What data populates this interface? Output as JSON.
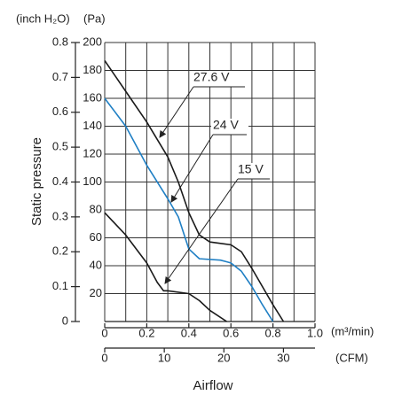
{
  "chart_data": {
    "type": "line",
    "y2_label": "(inch H₂O)",
    "y_label": "(Pa)",
    "y_title": "Static pressure",
    "x_label": "(m³/min)",
    "x2_label": "(CFM)",
    "x_title": "Airflow",
    "xlim": [
      0,
      1
    ],
    "xticks": [
      0,
      0.2,
      0.4,
      0.6,
      0.8,
      {
        "value": 1,
        "label": "1.0"
      }
    ],
    "xgrid": [
      0,
      0.1,
      0.2,
      0.3,
      0.4,
      0.5,
      0.6,
      0.7,
      0.8,
      0.9,
      1
    ],
    "x2lim": [
      0,
      35.3
    ],
    "x2ticks": [
      0,
      10,
      20,
      30
    ],
    "ylim": [
      0,
      200
    ],
    "yticks": [
      20,
      40,
      60,
      80,
      100,
      120,
      140,
      160,
      180,
      200
    ],
    "y2lim": [
      0,
      0.8
    ],
    "y2ticks": [
      0,
      0.1,
      0.2,
      0.3,
      0.4,
      0.5,
      0.6,
      0.7,
      0.8
    ],
    "grid": true,
    "series": [
      {
        "name": "27.6 V",
        "color": "#1a1a1a",
        "x": [
          0,
          0.1,
          0.2,
          0.3,
          0.35,
          0.4,
          0.45,
          0.5,
          0.6,
          0.65,
          0.7,
          0.8,
          0.85
        ],
        "values": [
          187,
          165,
          143,
          118,
          100,
          78,
          62,
          57,
          55,
          50,
          38,
          12,
          0
        ]
      },
      {
        "name": "24 V",
        "color": "#1f7fc4",
        "x": [
          0,
          0.1,
          0.2,
          0.3,
          0.35,
          0.4,
          0.45,
          0.55,
          0.6,
          0.65,
          0.7,
          0.75,
          0.8
        ],
        "values": [
          160,
          140,
          112,
          88,
          75,
          52,
          45,
          44,
          42,
          36,
          25,
          12,
          0
        ]
      },
      {
        "name": "15 V",
        "color": "#1a1a1a",
        "x": [
          0,
          0.1,
          0.2,
          0.25,
          0.28,
          0.3,
          0.4,
          0.45,
          0.5,
          0.58
        ],
        "values": [
          78,
          62,
          42,
          28,
          22,
          22,
          20,
          15,
          8,
          0
        ]
      }
    ]
  }
}
